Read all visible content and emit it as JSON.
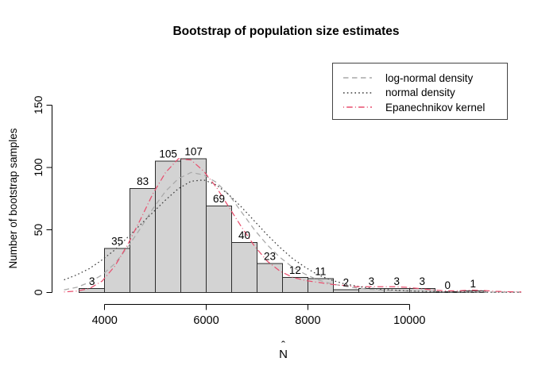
{
  "chart_data": {
    "type": "bar",
    "subtype": "histogram-with-density-overlays",
    "title": "Bootstrap of population size estimates",
    "xlabel": {
      "base": "N",
      "accent": "ˆ"
    },
    "ylabel": "Number of bootstrap samples",
    "x_ticks": [
      4000,
      6000,
      8000,
      10000
    ],
    "y_ticks": [
      0,
      50,
      100,
      150
    ],
    "ylim": [
      0,
      150
    ],
    "xlim": [
      3200,
      12200
    ],
    "grid": "off",
    "bin_edges": [
      3500,
      4000,
      4500,
      5000,
      5500,
      6000,
      6500,
      7000,
      7500,
      8000,
      8500,
      9000,
      9500,
      10000,
      10500,
      11000,
      11500
    ],
    "counts": [
      3,
      35,
      83,
      105,
      107,
      69,
      40,
      23,
      12,
      11,
      2,
      3,
      3,
      3,
      0,
      1
    ],
    "bar_fill": "#d3d3d3",
    "bar_stroke": "#2b2b2b",
    "legend_position": "top-right",
    "series": [
      {
        "name": "log-normal density",
        "style": "dashed",
        "color": "#a9a9a9",
        "x": [
          3200,
          3450,
          3700,
          3950,
          4200,
          4450,
          4700,
          4950,
          5200,
          5450,
          5700,
          5950,
          6200,
          6450,
          6700,
          6950,
          7200,
          7450,
          7700,
          7950,
          8200,
          8450,
          8700,
          8950,
          9200,
          9450,
          9700,
          9950,
          10200,
          10450,
          10700,
          10950,
          11200,
          11450,
          11700,
          11950,
          12200
        ],
        "y": [
          2,
          4,
          8,
          14,
          23,
          36,
          51,
          67,
          81,
          91,
          96,
          94,
          88,
          78,
          64,
          50,
          38,
          28,
          20,
          14.5,
          10,
          7,
          5,
          3.5,
          2.5,
          1.8,
          1.3,
          1,
          0.7,
          0.5,
          0.4,
          0.3,
          0.2,
          0.15,
          0.1,
          0.1,
          0.05
        ]
      },
      {
        "name": "normal density",
        "style": "dotted",
        "color": "#3b3b3b",
        "x": [
          3200,
          3450,
          3700,
          3950,
          4200,
          4450,
          4700,
          4950,
          5200,
          5450,
          5700,
          5950,
          6200,
          6450,
          6700,
          6950,
          7200,
          7450,
          7700,
          7950,
          8200,
          8450,
          8700,
          8950,
          9200,
          9450,
          9700,
          9950,
          10200,
          10450,
          10700,
          10950,
          11200,
          11450,
          11700,
          11950,
          12200
        ],
        "y": [
          10,
          14,
          19,
          26,
          34,
          44,
          54,
          64,
          74,
          83,
          89,
          90,
          86,
          78,
          68,
          57,
          46,
          36,
          27,
          20,
          14,
          10,
          7,
          5,
          3.5,
          2.5,
          1.8,
          1.2,
          0.9,
          0.6,
          0.4,
          0.3,
          0.2,
          0.15,
          0.1,
          0.1,
          0.05
        ]
      },
      {
        "name": "Epanechnikov kernel",
        "style": "dashdot",
        "color": "#e84f6e",
        "x": [
          3200,
          3450,
          3700,
          3950,
          4200,
          4450,
          4700,
          4950,
          5200,
          5450,
          5700,
          5950,
          6200,
          6450,
          6700,
          6950,
          7200,
          7450,
          7700,
          7950,
          8200,
          8450,
          8700,
          8950,
          9200,
          9450,
          9700,
          9950,
          10200,
          10450,
          10700,
          10950,
          11200,
          11450,
          11700,
          11950,
          12200
        ],
        "y": [
          0.3,
          1,
          3,
          9,
          21,
          38,
          58,
          79,
          96,
          107,
          106,
          97,
          84,
          68,
          52,
          37,
          25,
          17,
          12,
          9.5,
          8,
          6.5,
          5.5,
          4.5,
          4.5,
          4.5,
          4.5,
          4,
          3,
          2,
          1.2,
          1.2,
          1.8,
          1.5,
          0.8,
          0.5,
          0.3
        ]
      }
    ]
  }
}
